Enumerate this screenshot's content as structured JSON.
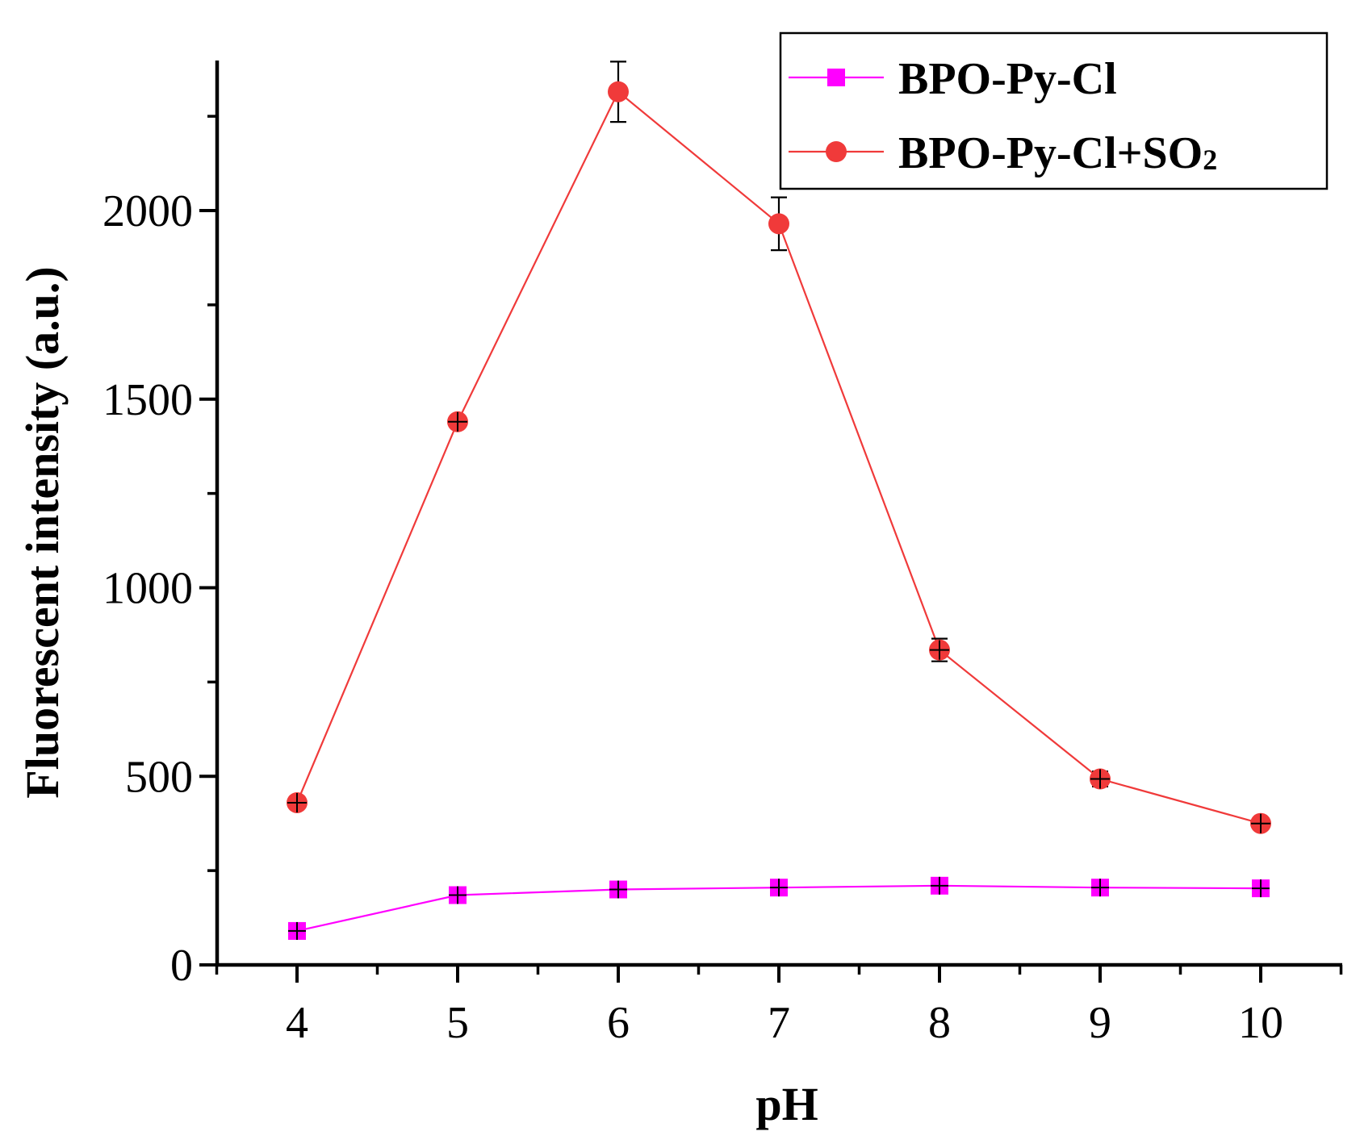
{
  "chart_data": {
    "type": "line",
    "title": "",
    "xlabel": "pH",
    "ylabel": "Fluorescent intensity (a.u.)",
    "x": [
      4,
      5,
      6,
      7,
      8,
      9,
      10
    ],
    "x_tick_labels": [
      "4",
      "5",
      "6",
      "7",
      "8",
      "9",
      "10"
    ],
    "y_tick_labels": [
      "0",
      "500",
      "1000",
      "1500",
      "2000"
    ],
    "y_ticks": [
      0,
      500,
      1000,
      1500,
      2000
    ],
    "xlim": [
      3.5,
      10.5
    ],
    "ylim": [
      0,
      2400
    ],
    "grid": false,
    "legend_position": "top-right",
    "series": [
      {
        "name": "BPO-Py-Cl",
        "marker": "square",
        "color": "#ff00ff",
        "values": [
          90,
          185,
          200,
          205,
          210,
          205,
          203
        ],
        "errors": [
          10,
          12,
          10,
          10,
          10,
          10,
          10
        ]
      },
      {
        "name": "BPO-Py-Cl+SO",
        "name_subscript": "2",
        "marker": "circle",
        "color": "#f03a3a",
        "values": [
          430,
          1440,
          2315,
          1965,
          835,
          493,
          375
        ],
        "errors": [
          12,
          15,
          80,
          70,
          30,
          20,
          15
        ]
      }
    ]
  }
}
